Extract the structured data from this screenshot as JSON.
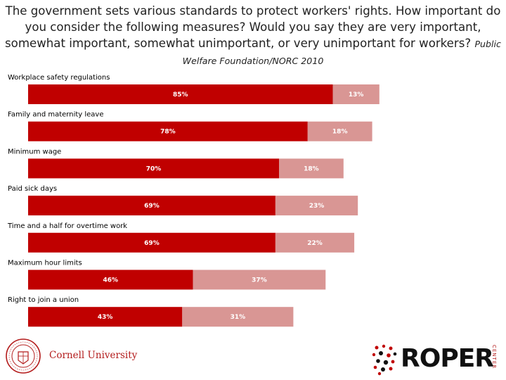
{
  "header": {
    "question": "The government sets various standards to protect workers' rights.  How important do you consider the following measures?  Would you say they are very important, somewhat important, somewhat unimportant, or very unimportant for workers?",
    "source": "Public Welfare Foundation/NORC 2010"
  },
  "colors": {
    "very_important": "#c00000",
    "somewhat_important": "#d99694"
  },
  "chart_data": {
    "type": "bar",
    "orientation": "horizontal",
    "stacked": true,
    "title": "",
    "xlabel": "",
    "ylabel": "",
    "xlim": [
      0,
      100
    ],
    "grid": false,
    "legend": "none",
    "categories": [
      "Workplace safety regulations",
      "Family and maternity leave",
      "Minimum  wage",
      "Paid sick days",
      "Time and a half for overtime work",
      "Maximum hour limits",
      "Right to join a union"
    ],
    "series": [
      {
        "values": [
          85,
          78,
          70,
          69,
          69,
          46,
          43
        ],
        "labels": [
          "85%",
          "78%",
          "70%",
          "69%",
          "69%",
          "46%",
          "43%"
        ]
      },
      {
        "values": [
          13,
          18,
          18,
          23,
          22,
          37,
          31
        ],
        "labels": [
          "13%",
          "18%",
          "18%",
          "23%",
          "22%",
          "37%",
          "31%"
        ]
      }
    ]
  },
  "logos": {
    "cornell": "Cornell University",
    "roper": "ROPER",
    "roper_sub": "CENTER"
  },
  "icons": {
    "cornell_seal": "cornell-seal-icon",
    "roper_mark": "roper-dots-icon"
  }
}
